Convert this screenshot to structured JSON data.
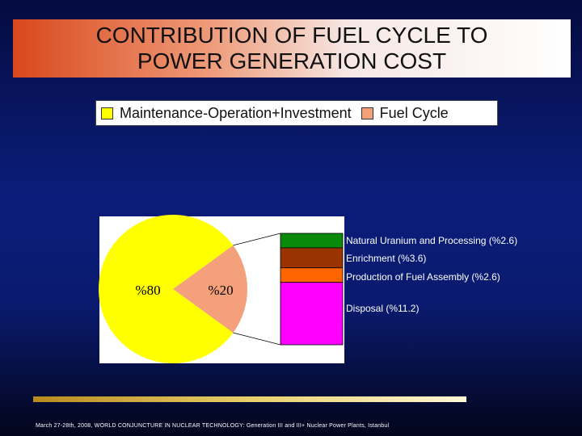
{
  "title": {
    "line1": "CONTRIBUTION OF FUEL CYCLE TO",
    "line2": "POWER GENERATION COST"
  },
  "legend": [
    {
      "label": "Maintenance-Operation+Investment",
      "color": "#ffff00"
    },
    {
      "label": "Fuel Cycle",
      "color": "#f4a07a"
    }
  ],
  "chart_data": {
    "type": "pie",
    "slices": [
      {
        "name": "Maintenance-Operation+Investment",
        "value": 80,
        "label": "%80",
        "color": "#ffff00"
      },
      {
        "name": "Fuel Cycle",
        "value": 20,
        "label": "%20",
        "color": "#f4a07a"
      }
    ],
    "breakdown": {
      "of": "Fuel Cycle",
      "items": [
        {
          "label": "Natural Uranium and Processing (%2.6)",
          "value": 2.6,
          "color": "#0a8a0a"
        },
        {
          "label": "Enrichment (%3.6)",
          "value": 3.6,
          "color": "#993300"
        },
        {
          "label": "Production of Fuel Assembly (%2.6)",
          "value": 2.6,
          "color": "#ff6600"
        },
        {
          "label": "Disposal  (%11.2)",
          "value": 11.2,
          "color": "#ff00ff"
        }
      ]
    }
  },
  "footer": "March 27-28th, 2008, WORLD CONJUNCTURE IN NUCLEAR TECHNOLOGY: Generation III and III+ Nuclear Power Plants, Istanbul"
}
